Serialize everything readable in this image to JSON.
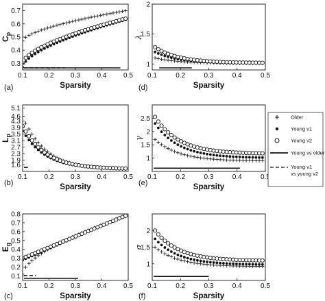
{
  "legend": {
    "entries": [
      {
        "marker": "plus",
        "label": "Older"
      },
      {
        "marker": "dot",
        "label": "Young v1"
      },
      {
        "marker": "circle",
        "label": "Young v2"
      },
      {
        "marker": "solid-line",
        "label": "Young vs older"
      },
      {
        "marker": "dashed-line",
        "label": "Young v1",
        "label2": "vs young v2"
      }
    ]
  },
  "chart_data": [
    {
      "panel": "(a)",
      "type": "scatter",
      "ylabel_main": "C",
      "ylabel_sub": "p",
      "xlabel": "Sparsity",
      "xlim": [
        0.1,
        0.5
      ],
      "ylim": [
        0.25,
        0.75
      ],
      "xticks": [
        "0.1",
        "0.2",
        "0.3",
        "0.4",
        "0.5"
      ],
      "yticks": [
        "0.3",
        "0.4",
        "0.5",
        "0.6",
        "0.7"
      ],
      "series": [
        {
          "marker": "plus",
          "x_start": 0.1,
          "x_end": 0.49,
          "y_start": 0.47,
          "y_end": 0.7,
          "shape": "sqrt"
        },
        {
          "marker": "dot",
          "x_start": 0.1,
          "x_end": 0.49,
          "y_start": 0.27,
          "y_end": 0.63,
          "shape": "sqrt"
        },
        {
          "marker": "circle",
          "x_start": 0.1,
          "x_end": 0.49,
          "y_start": 0.3,
          "y_end": 0.64,
          "shape": "sqrt"
        }
      ],
      "sig_bars": [
        {
          "style": "solid",
          "x0": 0.1,
          "x1": 0.47,
          "y": 0.245
        },
        {
          "style": "dashed",
          "x0": 0.1,
          "x1": 0.26,
          "y": 0.263
        }
      ]
    },
    {
      "panel": "(d)",
      "type": "scatter",
      "ylabel_main": "λ",
      "ylabel_sub": "",
      "xlabel": "Sparsity",
      "xlim": [
        0.1,
        0.5
      ],
      "ylim": [
        0.9,
        2.0
      ],
      "xticks": [
        "0.1",
        "0.2",
        "0.3",
        "0.4",
        "0.5"
      ],
      "yticks": [
        "1",
        "1.5",
        "2"
      ],
      "series": [
        {
          "marker": "plus",
          "x_start": 0.11,
          "x_end": 0.49,
          "y_start": 1.1,
          "y_end": 1.01,
          "shape": "decay"
        },
        {
          "marker": "dot",
          "x_start": 0.11,
          "x_end": 0.49,
          "y_start": 1.2,
          "y_end": 1.01,
          "shape": "decay"
        },
        {
          "marker": "circle",
          "x_start": 0.11,
          "x_end": 0.49,
          "y_start": 1.28,
          "y_end": 1.02,
          "shape": "decay"
        }
      ],
      "sig_bars": [
        {
          "style": "solid",
          "x0": 0.12,
          "x1": 0.24,
          "y": 0.87
        }
      ]
    },
    {
      "panel": "(b)",
      "type": "scatter",
      "ylabel_main": "L",
      "ylabel_sub": "p",
      "xlabel": "Sparsity",
      "xlim": [
        0.1,
        0.5
      ],
      "ylim": [
        1.2,
        5.3
      ],
      "xticks": [
        "0.1",
        "0.2",
        "0.3",
        "0.4",
        "0.5"
      ],
      "yticks": [
        "1.6",
        "1.9",
        "2.3",
        "2.7",
        "3.1",
        "3.5",
        "3.9",
        "4.3",
        "4.6",
        "5.1"
      ],
      "series": [
        {
          "marker": "plus",
          "x_start": 0.1,
          "x_end": 0.49,
          "y_start": 4.6,
          "y_end": 1.35,
          "shape": "decay"
        },
        {
          "marker": "dot",
          "x_start": 0.1,
          "x_end": 0.49,
          "y_start": 3.7,
          "y_end": 1.35,
          "shape": "decay"
        },
        {
          "marker": "circle",
          "x_start": 0.1,
          "x_end": 0.49,
          "y_start": 4.0,
          "y_end": 1.38,
          "shape": "decay"
        }
      ],
      "sig_bars": [
        {
          "style": "solid",
          "x0": 0.1,
          "x1": 0.12,
          "y": 1.45
        }
      ]
    },
    {
      "panel": "(e)",
      "type": "scatter",
      "ylabel_main": "γ",
      "ylabel_sub": "",
      "xlabel": "Sparsity",
      "xlim": [
        0.1,
        0.5
      ],
      "ylim": [
        0.5,
        3.0
      ],
      "xticks": [
        "0.1",
        "0.2",
        "0.3",
        "0.4",
        "0.5"
      ],
      "yticks": [
        "1",
        "1.5",
        "2",
        "2.5"
      ],
      "series": [
        {
          "marker": "plus",
          "x_start": 0.11,
          "x_end": 0.49,
          "y_start": 1.7,
          "y_end": 0.9,
          "shape": "decay"
        },
        {
          "marker": "dot",
          "x_start": 0.11,
          "x_end": 0.49,
          "y_start": 2.3,
          "y_end": 1.02,
          "shape": "decay"
        },
        {
          "marker": "circle",
          "x_start": 0.11,
          "x_end": 0.49,
          "y_start": 2.55,
          "y_end": 1.18,
          "shape": "decay"
        }
      ],
      "sig_bars": [
        {
          "style": "solid",
          "x0": 0.1,
          "x1": 0.41,
          "y": 0.62
        }
      ]
    },
    {
      "panel": "(c)",
      "type": "scatter",
      "ylabel_main": "E",
      "ylabel_sub": "g",
      "xlabel": "Sparsity",
      "xlim": [
        0.1,
        0.5
      ],
      "ylim": [
        0.05,
        0.8
      ],
      "xticks": [
        "0.1",
        "0.2",
        "0.3",
        "0.4",
        "0.5"
      ],
      "yticks": [
        "0.1",
        "0.2",
        "0.3",
        "0.4",
        "0.5",
        "0.6",
        "0.7",
        "0.8"
      ],
      "series": [
        {
          "marker": "plus",
          "x_start": 0.1,
          "x_end": 0.49,
          "y_start": 0.12,
          "y_end": 0.77,
          "shape": "sqrt"
        },
        {
          "marker": "dot",
          "x_start": 0.1,
          "x_end": 0.49,
          "y_start": 0.28,
          "y_end": 0.78,
          "shape": "linear"
        },
        {
          "marker": "circle",
          "x_start": 0.1,
          "x_end": 0.49,
          "y_start": 0.3,
          "y_end": 0.78,
          "shape": "linear"
        }
      ],
      "sig_bars": [
        {
          "style": "solid",
          "x0": 0.1,
          "x1": 0.31,
          "y": 0.065
        },
        {
          "style": "dashed",
          "x0": 0.1,
          "x1": 0.15,
          "y": 0.105
        }
      ]
    },
    {
      "panel": "(f)",
      "type": "scatter",
      "ylabel_main": "σ",
      "ylabel_sub": "",
      "xlabel": "Sparsity",
      "xlim": [
        0.1,
        0.5
      ],
      "ylim": [
        0.5,
        2.5
      ],
      "xticks": [
        "0.1",
        "0.2",
        "0.3",
        "0.4",
        "0.5"
      ],
      "yticks": [
        "1",
        "1.5",
        "2"
      ],
      "series": [
        {
          "marker": "plus",
          "x_start": 0.11,
          "x_end": 0.49,
          "y_start": 1.5,
          "y_end": 0.92,
          "shape": "decay"
        },
        {
          "marker": "dot",
          "x_start": 0.11,
          "x_end": 0.49,
          "y_start": 1.75,
          "y_end": 0.98,
          "shape": "decay"
        },
        {
          "marker": "circle",
          "x_start": 0.11,
          "x_end": 0.49,
          "y_start": 2.0,
          "y_end": 1.1,
          "shape": "decay"
        }
      ],
      "sig_bars": [
        {
          "style": "solid",
          "x0": 0.1,
          "x1": 0.3,
          "y": 0.62
        }
      ]
    }
  ]
}
